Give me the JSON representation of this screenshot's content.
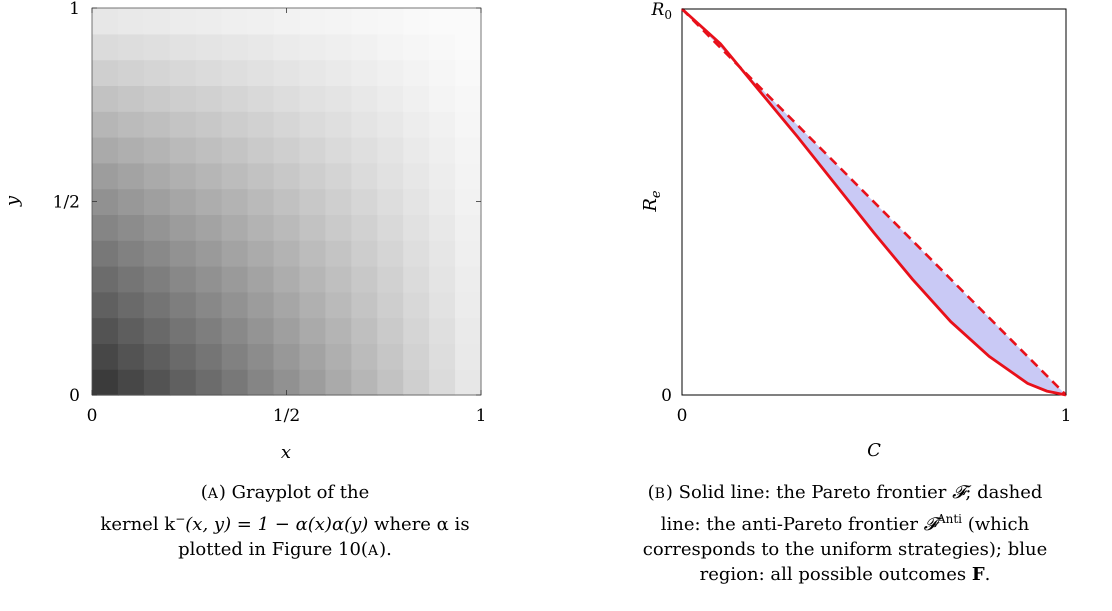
{
  "chart_data": [
    {
      "type": "heatmap",
      "title": "",
      "xlabel": "x",
      "ylabel": "y",
      "xlim": [
        0,
        1
      ],
      "ylim": [
        0,
        1
      ],
      "x_ticks": [
        "0",
        "1/2",
        "1"
      ],
      "y_ticks": [
        "0",
        "1/2",
        "1"
      ],
      "colormap": "gray",
      "rows": 15,
      "cols": 15,
      "kernel_formula": "k⁻(x, y) = 1 − α(x)α(y)"
    },
    {
      "type": "line",
      "title": "",
      "xlabel": "C",
      "ylabel": "R_e",
      "xlim": [
        0,
        1
      ],
      "ylim": [
        0,
        1
      ],
      "x_ticks": [
        "0",
        "1"
      ],
      "y_ticks": [
        "0",
        "R0"
      ],
      "series": [
        {
          "style": "solid",
          "color": "#e8101a",
          "x": [
            0,
            0.1,
            0.2,
            0.3,
            0.4,
            0.5,
            0.6,
            0.7,
            0.8,
            0.9,
            0.95,
            1
          ],
          "y": [
            1,
            0.91,
            0.79,
            0.67,
            0.545,
            0.42,
            0.3,
            0.19,
            0.1,
            0.03,
            0.01,
            0
          ]
        },
        {
          "style": "dashed",
          "color": "#e8101a",
          "x": [
            0,
            1
          ],
          "y": [
            1,
            0
          ]
        }
      ],
      "region_color": "#c9c9f5"
    }
  ],
  "captions": {
    "a": {
      "label": "A",
      "line1": "Grayplot of the",
      "line2_pre": "kernel k",
      "line2_formula": "(x, y) = 1 − α(x)α(y)",
      "line2_post": " where α is",
      "line3_pre": "plotted in Figure 10(",
      "line3_sub": "A",
      "line3_post": ")."
    },
    "b": {
      "label": "B",
      "line1_pre": "Solid line: the Pareto frontier ",
      "line1_sym": "𝓕",
      "line1_post": "; dashed",
      "line2_pre": "line: the anti-Pareto frontier ",
      "line2_sym": "𝓕",
      "line2_sup": "Anti",
      "line2_post": " (which",
      "line3": "corresponds to the uniform strategies); blue",
      "line4_pre": "region: all possible outcomes ",
      "line4_bold": "F",
      "line4_post": "."
    }
  }
}
